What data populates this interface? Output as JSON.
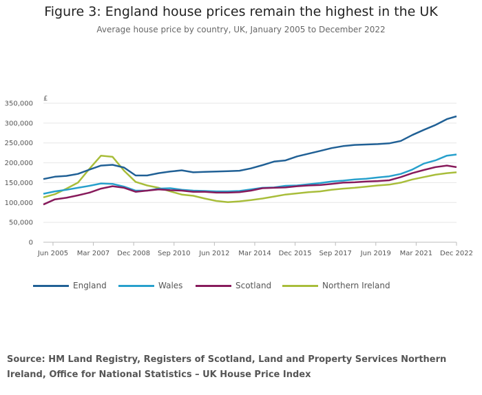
{
  "title": "Figure 3: England house prices remain the highest in the UK",
  "subtitle": "Average house price by country, UK, January 2005 to December 2022",
  "source": "Source: HM Land Registry, Registers of Scotland, Land and Property Services Northern Ireland, Office for National Statistics – UK House Price Index",
  "chart_data": {
    "type": "line",
    "title": "Figure 3: England house prices remain the highest in the UK",
    "subtitle": "Average house price by country, UK, January 2005 to December 2022",
    "ylabel": "£",
    "ylim": [
      0,
      350000
    ],
    "yticks": [
      "350,000",
      "300,000",
      "250,000",
      "200,000",
      "150,000",
      "100,000",
      "50,000",
      "0"
    ],
    "xlim": [
      "Jan 2005",
      "Dec 2022"
    ],
    "xticks": [
      "Jun 2005",
      "Mar 2007",
      "Dec 2008",
      "Sep 2010",
      "Jun 2012",
      "Mar 2014",
      "Dec 2015",
      "Sep 2017",
      "Jun 2019",
      "Mar 2021",
      "Dec 2022"
    ],
    "grid": true,
    "legend": "bottom",
    "x": [
      "Jan 2005",
      "Jul 2005",
      "Jan 2006",
      "Jul 2006",
      "Jan 2007",
      "Jul 2007",
      "Jan 2008",
      "Jul 2008",
      "Jan 2009",
      "Jul 2009",
      "Jan 2010",
      "Jul 2010",
      "Jan 2011",
      "Jul 2011",
      "Jan 2012",
      "Jul 2012",
      "Jan 2013",
      "Jul 2013",
      "Jan 2014",
      "Jul 2014",
      "Jan 2015",
      "Jul 2015",
      "Jan 2016",
      "Jul 2016",
      "Jan 2017",
      "Jul 2017",
      "Jan 2018",
      "Jul 2018",
      "Jan 2019",
      "Jul 2019",
      "Jan 2020",
      "Jul 2020",
      "Jan 2021",
      "Jul 2021",
      "Jan 2022",
      "Jul 2022",
      "Dec 2022"
    ],
    "series": [
      {
        "name": "England",
        "color": "#206095",
        "values": [
          159000,
          165000,
          167000,
          172000,
          183000,
          193000,
          195000,
          188000,
          168000,
          168000,
          174000,
          178000,
          181000,
          176000,
          177000,
          178000,
          179000,
          180000,
          186000,
          194000,
          203000,
          206000,
          216000,
          223000,
          230000,
          237000,
          242000,
          245000,
          246000,
          247000,
          249000,
          255000,
          270000,
          283000,
          295000,
          310000,
          317000
        ]
      },
      {
        "name": "Wales",
        "color": "#27a0cc",
        "values": [
          122000,
          128000,
          132000,
          137000,
          142000,
          148000,
          147000,
          140000,
          130000,
          130000,
          135000,
          136000,
          132000,
          130000,
          129000,
          128000,
          128000,
          129000,
          133000,
          137000,
          138000,
          142000,
          143000,
          146000,
          149000,
          153000,
          155000,
          158000,
          160000,
          163000,
          166000,
          172000,
          183000,
          198000,
          206000,
          218000,
          221000
        ]
      },
      {
        "name": "Scotland",
        "color": "#871a5b",
        "values": [
          95000,
          108000,
          112000,
          118000,
          125000,
          135000,
          141000,
          137000,
          127000,
          130000,
          133000,
          131000,
          130000,
          127000,
          127000,
          125000,
          125000,
          126000,
          130000,
          136000,
          137000,
          138000,
          141000,
          143000,
          144000,
          147000,
          150000,
          151000,
          153000,
          154000,
          156000,
          164000,
          174000,
          182000,
          189000,
          193000,
          189000
        ]
      },
      {
        "name": "Northern Ireland",
        "color": "#a8bd3a",
        "values": [
          113000,
          121000,
          135000,
          150000,
          185000,
          218000,
          215000,
          180000,
          152000,
          143000,
          137000,
          128000,
          120000,
          117000,
          110000,
          104000,
          101000,
          103000,
          106000,
          110000,
          115000,
          120000,
          123000,
          126000,
          128000,
          132000,
          135000,
          137000,
          140000,
          143000,
          145000,
          150000,
          158000,
          164000,
          170000,
          174000,
          176000
        ]
      }
    ]
  }
}
